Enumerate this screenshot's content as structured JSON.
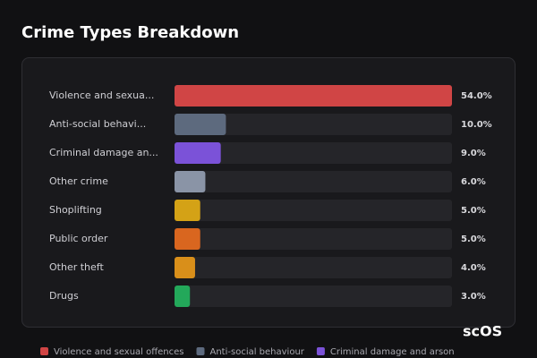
{
  "chart_data": {
    "type": "bar",
    "orientation": "horizontal",
    "title": "Crime Types Breakdown",
    "categories": [
      "Violence and sexua...",
      "Anti-social behavi...",
      "Criminal damage an...",
      "Other crime",
      "Shoplifting",
      "Public order",
      "Other theft",
      "Drugs"
    ],
    "values": [
      54,
      10,
      9,
      6,
      5,
      5,
      4,
      3
    ],
    "value_labels": [
      "54.0%",
      "10.0%",
      "9.0%",
      "6.0%",
      "5.0%",
      "5.0%",
      "4.0%",
      "3.0%"
    ],
    "colors": [
      "#d04545",
      "#5d6a7e",
      "#7b52d8",
      "#8a94a6",
      "#d4a216",
      "#d9661f",
      "#d98f1a",
      "#23a85a"
    ],
    "xlim": [
      0,
      54
    ],
    "legend": [
      {
        "name": "Violence and sexual offences",
        "color": "#d04545"
      },
      {
        "name": "Anti-social behaviour",
        "color": "#5d6a7e"
      },
      {
        "name": "Criminal damage and arson",
        "color": "#7b52d8"
      }
    ],
    "watermark": "scOS"
  }
}
